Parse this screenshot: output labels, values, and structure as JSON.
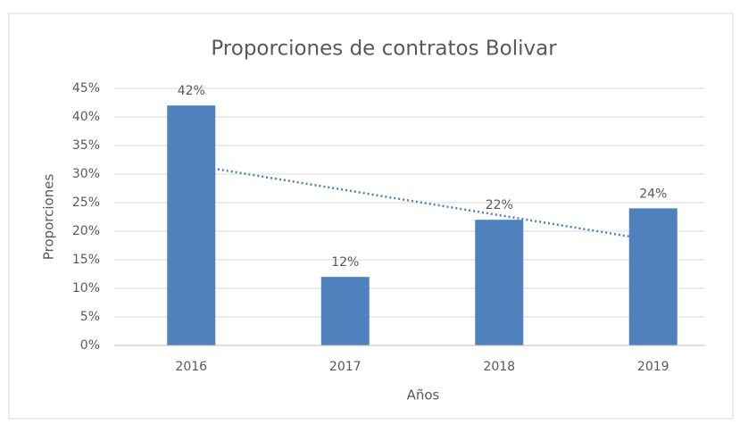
{
  "chart_data": {
    "type": "bar",
    "title": "Proporciones de contratos Bolivar",
    "categories": [
      "2016",
      "2017",
      "2018",
      "2019"
    ],
    "values": [
      42,
      12,
      22,
      24
    ],
    "value_labels": [
      "42%",
      "12%",
      "22%",
      "24%"
    ],
    "color": "#4f81bd",
    "x_label": "Años",
    "y_label": "Proporciones",
    "ylim": [
      0,
      45
    ],
    "yticks": [
      {
        "value": 0,
        "label": "0%"
      },
      {
        "value": 5,
        "label": "5%"
      },
      {
        "value": 10,
        "label": "10%"
      },
      {
        "value": 15,
        "label": "15%"
      },
      {
        "value": 20,
        "label": "20%"
      },
      {
        "value": 25,
        "label": "25%"
      },
      {
        "value": 30,
        "label": "30%"
      },
      {
        "value": 35,
        "label": "35%"
      },
      {
        "value": 40,
        "label": "40%"
      },
      {
        "value": 45,
        "label": "45%"
      }
    ],
    "grid": true,
    "trendline": "linear",
    "trendline_color": "#4f81bd"
  }
}
